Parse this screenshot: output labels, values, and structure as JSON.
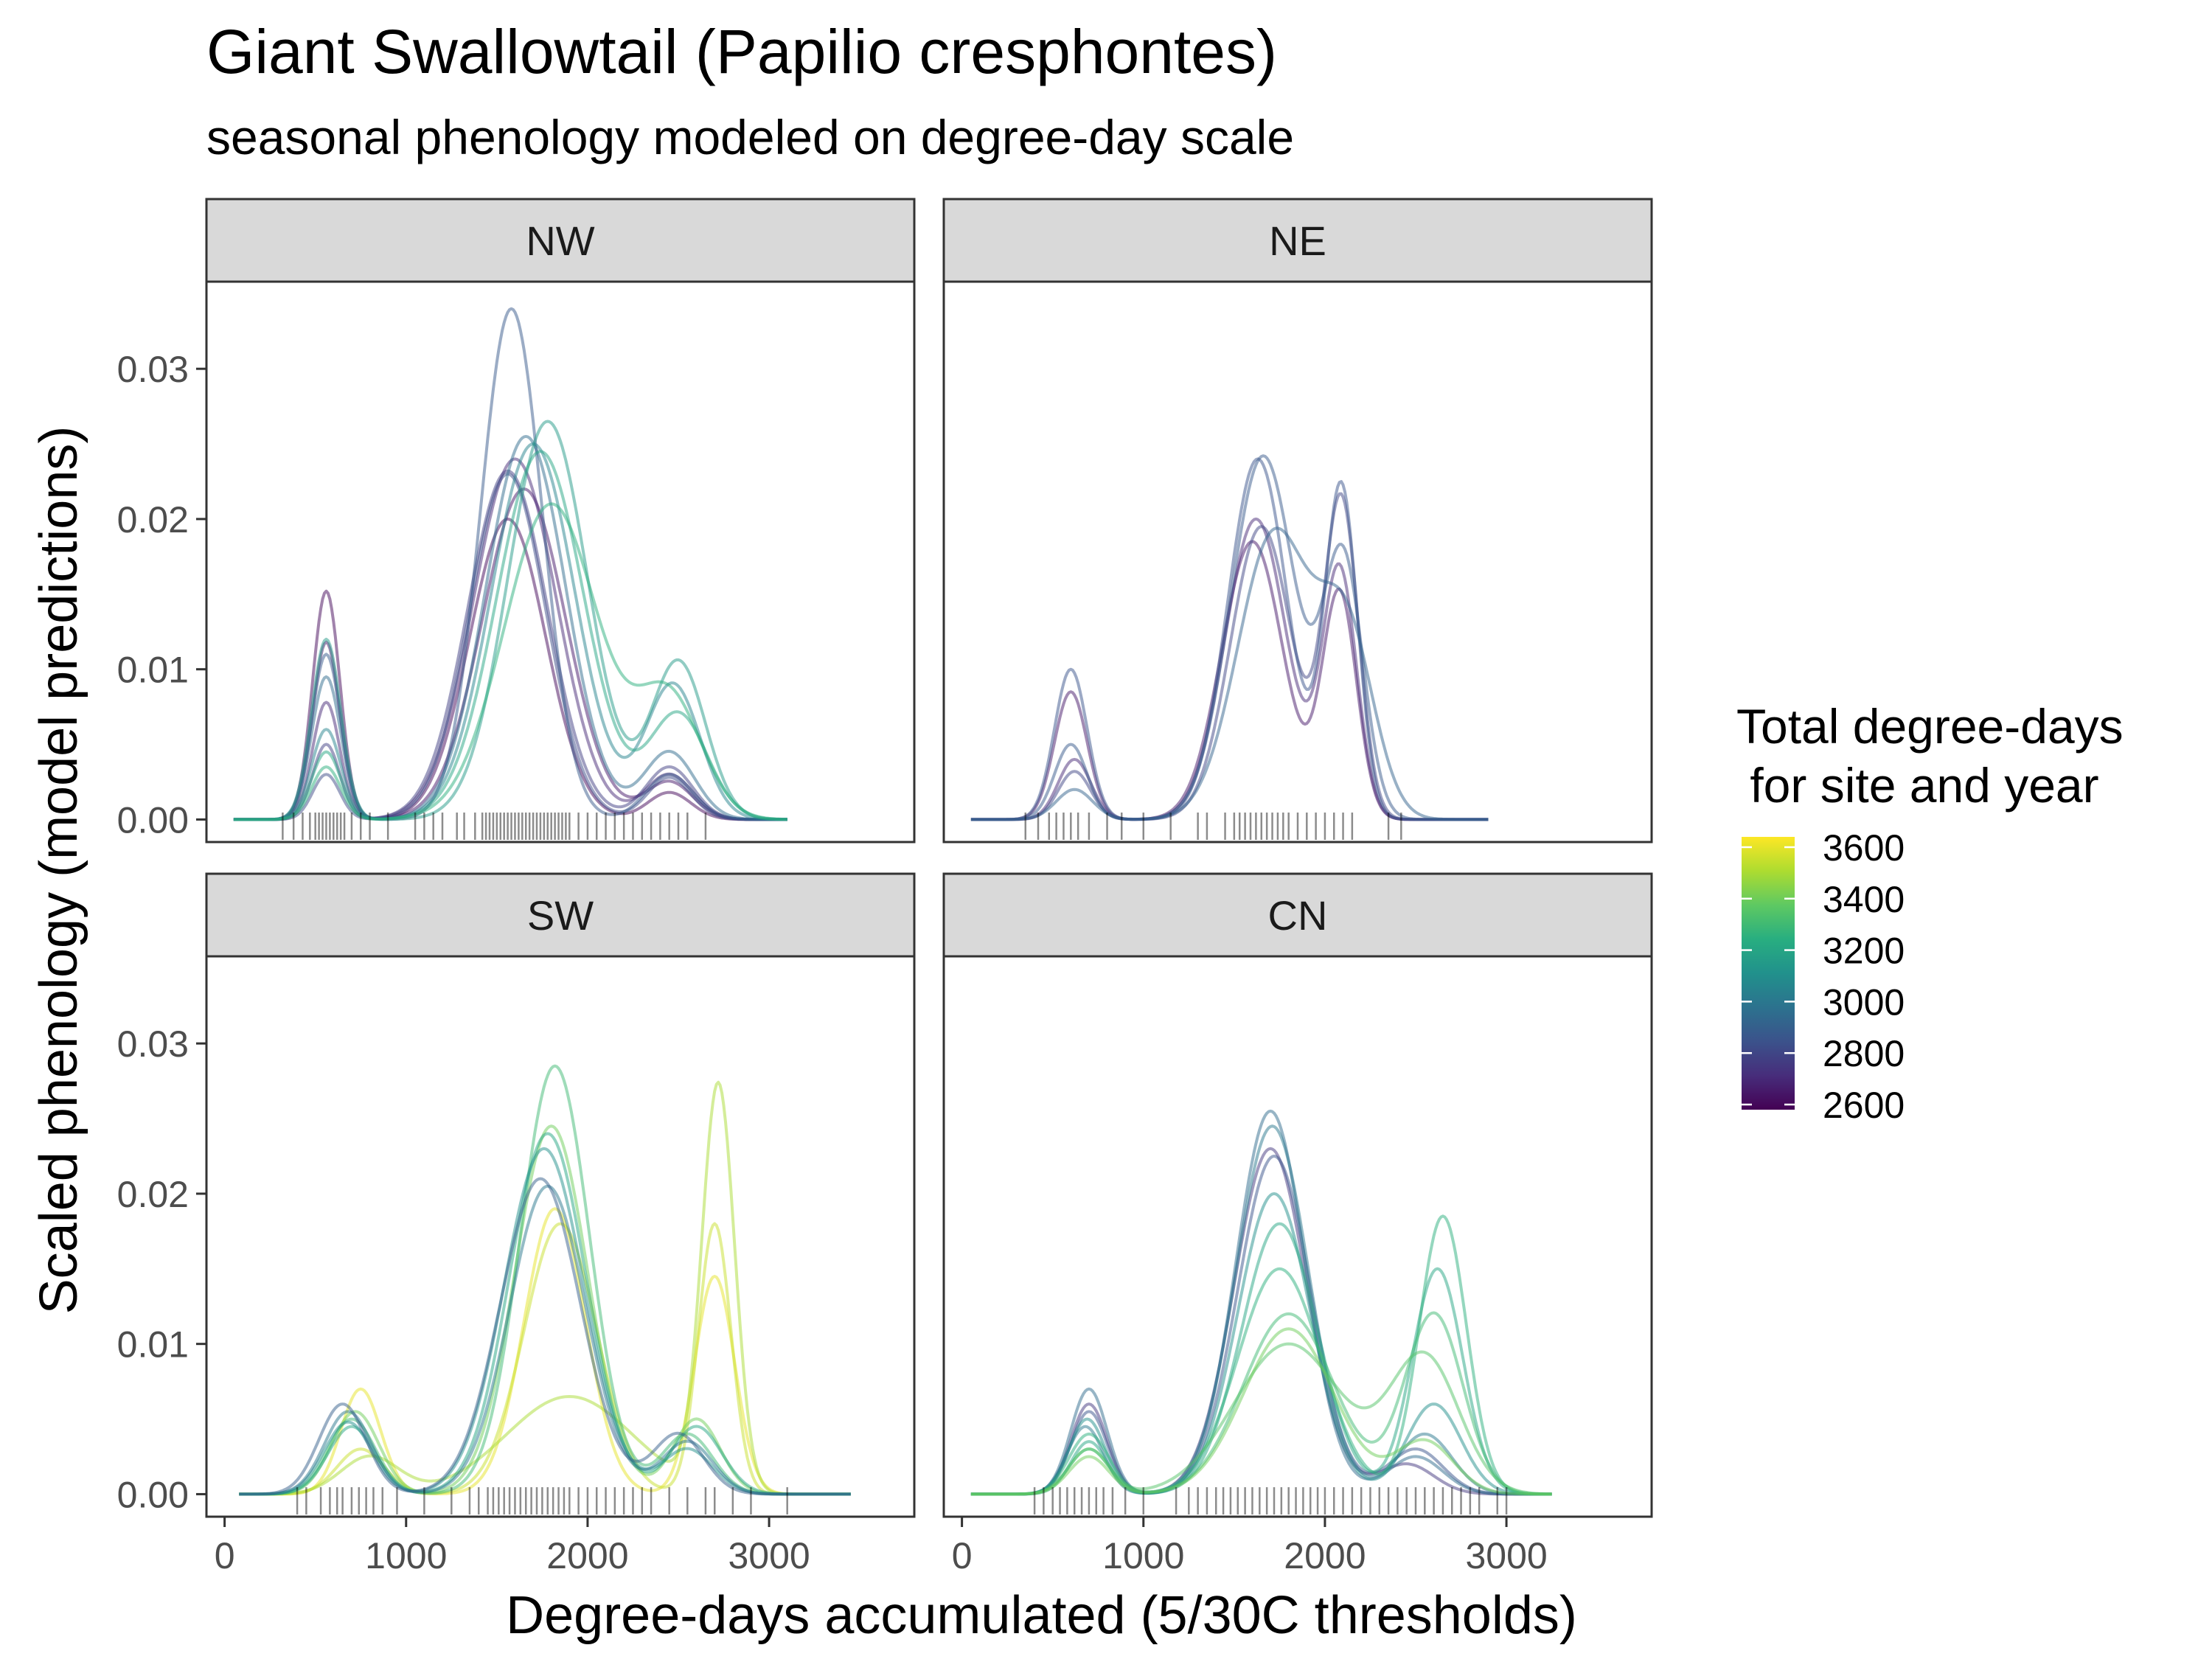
{
  "chart_data": {
    "type": "line",
    "title": "Giant Swallowtail (Papilio cresphontes)",
    "subtitle": "seasonal phenology modeled on degree-day scale",
    "xlabel": "Degree-days accumulated (5/30C thresholds)",
    "ylabel": "Scaled phenology (model predictions)",
    "xlim": [
      -100,
      3800
    ],
    "ylim": [
      -0.0015,
      0.0358
    ],
    "x_ticks": [
      0,
      1000,
      2000,
      3000
    ],
    "x_tick_labels": [
      "0",
      "1000",
      "2000",
      "3000"
    ],
    "y_ticks": [
      0,
      0.01,
      0.02,
      0.03
    ],
    "y_tick_labels": [
      "0.00",
      "0.01",
      "0.02",
      "0.03"
    ],
    "grid": false,
    "legend": {
      "title": "Total degree-days\n for site and year",
      "placement": "right",
      "type": "colorbar",
      "palette": "viridis",
      "range": [
        2580,
        3640
      ],
      "breaks": [
        3600,
        3400,
        3200,
        3000,
        2800,
        2600
      ],
      "break_labels": [
        "3600",
        "3400",
        "3200",
        "3000",
        "2800",
        "2600"
      ]
    },
    "panels": [
      {
        "name": "NW",
        "x_range": [
          50,
          3100
        ],
        "series": [
          {
            "color_value": 2600,
            "peaks": [
              [
                560,
                0.0152,
                75
              ],
              [
                1560,
                0.02,
                210
              ],
              [
                2450,
                0.0018,
                120
              ]
            ]
          },
          {
            "color_value": 2650,
            "peaks": [
              [
                560,
                0.0118,
                75
              ],
              [
                1650,
                0.022,
                230
              ],
              [
                2450,
                0.0025,
                130
              ]
            ]
          },
          {
            "color_value": 2700,
            "peaks": [
              [
                560,
                0.0078,
                75
              ],
              [
                1600,
                0.024,
                230
              ],
              [
                2450,
                0.003,
                130
              ]
            ]
          },
          {
            "color_value": 2780,
            "peaks": [
              [
                560,
                0.005,
                75
              ],
              [
                1560,
                0.0232,
                220
              ],
              [
                2450,
                0.0035,
                130
              ]
            ]
          },
          {
            "color_value": 2820,
            "peaks": [
              [
                560,
                0.003,
                75
              ],
              [
                1560,
                0.023,
                210
              ],
              [
                2450,
                0.0028,
                120
              ]
            ]
          },
          {
            "color_value": 2880,
            "peaks": [
              [
                560,
                0.011,
                80
              ],
              [
                1580,
                0.034,
                170
              ],
              [
                2450,
                0.003,
                130
              ]
            ]
          },
          {
            "color_value": 2950,
            "peaks": [
              [
                560,
                0.0095,
                80
              ],
              [
                1660,
                0.0255,
                220
              ],
              [
                2450,
                0.0045,
                140
              ]
            ]
          },
          {
            "color_value": 3050,
            "peaks": [
              [
                560,
                0.006,
                80
              ],
              [
                1700,
                0.025,
                230
              ],
              [
                2470,
                0.009,
                150
              ]
            ]
          },
          {
            "color_value": 3150,
            "peaks": [
              [
                560,
                0.012,
                80
              ],
              [
                1780,
                0.0265,
                220
              ],
              [
                2500,
                0.0105,
                150
              ]
            ]
          },
          {
            "color_value": 3200,
            "peaks": [
              [
                560,
                0.0045,
                80
              ],
              [
                1740,
                0.0245,
                240
              ],
              [
                2500,
                0.007,
                160
              ]
            ]
          },
          {
            "color_value": 3250,
            "peaks": [
              [
                560,
                0.0035,
                80
              ],
              [
                1800,
                0.021,
                260
              ],
              [
                2450,
                0.008,
                180
              ]
            ]
          }
        ]
      },
      {
        "name": "NE",
        "x_range": [
          50,
          2900
        ],
        "series": [
          {
            "color_value": 2650,
            "peaks": [
              [
                600,
                0.0085,
                90
              ],
              [
                1600,
                0.0185,
                170
              ],
              [
                2080,
                0.015,
                95
              ]
            ]
          },
          {
            "color_value": 2700,
            "peaks": [
              [
                620,
                0.004,
                90
              ],
              [
                1620,
                0.02,
                170
              ],
              [
                2080,
                0.0165,
                95
              ]
            ]
          },
          {
            "color_value": 2800,
            "peaks": [
              [
                620,
                0.0032,
                90
              ],
              [
                1650,
                0.0195,
                170
              ],
              [
                2090,
                0.021,
                95
              ]
            ]
          },
          {
            "color_value": 2850,
            "peaks": [
              [
                600,
                0.01,
                90
              ],
              [
                1630,
                0.024,
                165
              ],
              [
                2090,
                0.022,
                90
              ]
            ]
          },
          {
            "color_value": 2880,
            "peaks": [
              [
                600,
                0.005,
                90
              ],
              [
                1660,
                0.0242,
                180
              ],
              [
                2100,
                0.017,
                110
              ]
            ]
          },
          {
            "color_value": 2920,
            "peaks": [
              [
                620,
                0.002,
                100
              ],
              [
                1720,
                0.019,
                200
              ],
              [
                2120,
                0.012,
                150
              ]
            ]
          }
        ]
      },
      {
        "name": "SW",
        "x_range": [
          80,
          3450
        ],
        "series": [
          {
            "color_value": 3600,
            "peaks": [
              [
                750,
                0.007,
                110
              ],
              [
                1820,
                0.019,
                170
              ],
              [
                2700,
                0.0145,
                110
              ]
            ]
          },
          {
            "color_value": 3550,
            "peaks": [
              [
                750,
                0.003,
                130
              ],
              [
                1850,
                0.018,
                200
              ],
              [
                2700,
                0.018,
                90
              ]
            ]
          },
          {
            "color_value": 3500,
            "peaks": [
              [
                800,
                0.0025,
                160
              ],
              [
                1900,
                0.0065,
                350
              ],
              [
                2720,
                0.027,
                90
              ]
            ]
          },
          {
            "color_value": 3400,
            "peaks": [
              [
                720,
                0.0055,
                130
              ],
              [
                1800,
                0.0245,
                200
              ],
              [
                2600,
                0.005,
                130
              ]
            ]
          },
          {
            "color_value": 3300,
            "peaks": [
              [
                700,
                0.005,
                130
              ],
              [
                1820,
                0.0285,
                190
              ],
              [
                2550,
                0.004,
                140
              ]
            ]
          },
          {
            "color_value": 3200,
            "peaks": [
              [
                700,
                0.0045,
                130
              ],
              [
                1780,
                0.024,
                210
              ],
              [
                2600,
                0.0045,
                140
              ]
            ]
          },
          {
            "color_value": 3100,
            "peaks": [
              [
                680,
                0.0048,
                130
              ],
              [
                1760,
                0.023,
                220
              ],
              [
                2550,
                0.003,
                140
              ]
            ]
          },
          {
            "color_value": 3000,
            "peaks": [
              [
                680,
                0.0055,
                130
              ],
              [
                1780,
                0.0205,
                210
              ],
              [
                2550,
                0.0035,
                140
              ]
            ]
          },
          {
            "color_value": 2900,
            "peaks": [
              [
                650,
                0.006,
                130
              ],
              [
                1740,
                0.021,
                220
              ],
              [
                2500,
                0.004,
                140
              ]
            ]
          }
        ]
      },
      {
        "name": "CN",
        "x_range": [
          50,
          3250
        ],
        "series": [
          {
            "color_value": 2750,
            "peaks": [
              [
                700,
                0.006,
                100
              ],
              [
                1700,
                0.023,
                200
              ],
              [
                2450,
                0.002,
                150
              ]
            ]
          },
          {
            "color_value": 2850,
            "peaks": [
              [
                700,
                0.0055,
                100
              ],
              [
                1720,
                0.0225,
                200
              ],
              [
                2500,
                0.003,
                150
              ]
            ]
          },
          {
            "color_value": 2950,
            "peaks": [
              [
                700,
                0.007,
                100
              ],
              [
                1700,
                0.0255,
                190
              ],
              [
                2500,
                0.0025,
                150
              ]
            ]
          },
          {
            "color_value": 3000,
            "peaks": [
              [
                680,
                0.0045,
                100
              ],
              [
                1710,
                0.0245,
                200
              ],
              [
                2550,
                0.004,
                150
              ]
            ]
          },
          {
            "color_value": 3100,
            "peaks": [
              [
                690,
                0.005,
                100
              ],
              [
                1720,
                0.02,
                200
              ],
              [
                2600,
                0.006,
                150
              ]
            ]
          },
          {
            "color_value": 3200,
            "peaks": [
              [
                700,
                0.0035,
                100
              ],
              [
                1750,
                0.018,
                210
              ],
              [
                2620,
                0.015,
                140
              ]
            ]
          },
          {
            "color_value": 3250,
            "peaks": [
              [
                700,
                0.004,
                110
              ],
              [
                1750,
                0.015,
                230
              ],
              [
                2650,
                0.0185,
                130
              ]
            ]
          },
          {
            "color_value": 3300,
            "peaks": [
              [
                700,
                0.003,
                110
              ],
              [
                1800,
                0.012,
                250
              ],
              [
                2600,
                0.012,
                160
              ]
            ]
          },
          {
            "color_value": 3350,
            "peaks": [
              [
                700,
                0.003,
                110
              ],
              [
                1800,
                0.01,
                300
              ],
              [
                2550,
                0.009,
                190
              ]
            ]
          },
          {
            "color_value": 3400,
            "peaks": [
              [
                700,
                0.0025,
                110
              ],
              [
                1800,
                0.011,
                250
              ],
              [
                2550,
                0.0035,
                160
              ]
            ]
          }
        ]
      }
    ],
    "rug_points": [
      {
        "panel": "NW",
        "x": [
          320,
          380,
          430,
          470,
          500,
          520,
          540,
          560,
          580,
          600,
          620,
          640,
          660,
          700,
          750,
          800,
          900,
          1050,
          1100,
          1150,
          1200,
          1280,
          1320,
          1380,
          1420,
          1440,
          1460,
          1480,
          1500,
          1520,
          1540,
          1560,
          1580,
          1600,
          1620,
          1640,
          1660,
          1680,
          1700,
          1720,
          1740,
          1760,
          1780,
          1800,
          1820,
          1840,
          1860,
          1880,
          1900,
          1950,
          2000,
          2050,
          2100,
          2150,
          2200,
          2250,
          2300,
          2350,
          2400,
          2450,
          2500,
          2550,
          2650
        ]
      },
      {
        "panel": "NE",
        "x": [
          350,
          420,
          480,
          520,
          560,
          600,
          640,
          700,
          800,
          880,
          1000,
          1150,
          1300,
          1350,
          1450,
          1500,
          1530,
          1560,
          1590,
          1620,
          1650,
          1680,
          1710,
          1740,
          1770,
          1800,
          1850,
          1900,
          1950,
          2000,
          2050,
          2100,
          2150,
          2350,
          2420
        ]
      },
      {
        "panel": "SW",
        "x": [
          400,
          450,
          530,
          580,
          620,
          650,
          700,
          740,
          780,
          820,
          870,
          950,
          1100,
          1250,
          1350,
          1400,
          1450,
          1480,
          1510,
          1540,
          1570,
          1600,
          1630,
          1660,
          1690,
          1720,
          1750,
          1780,
          1810,
          1840,
          1870,
          1900,
          1950,
          2000,
          2050,
          2100,
          2150,
          2200,
          2250,
          2300,
          2350,
          2450,
          2550,
          2650,
          2700,
          2800,
          2900,
          3100
        ]
      },
      {
        "panel": "CN",
        "x": [
          400,
          450,
          500,
          540,
          580,
          620,
          660,
          700,
          740,
          780,
          830,
          900,
          1000,
          1180,
          1250,
          1300,
          1350,
          1400,
          1440,
          1480,
          1520,
          1560,
          1600,
          1640,
          1680,
          1720,
          1760,
          1800,
          1840,
          1880,
          1920,
          1960,
          2000,
          2050,
          2100,
          2150,
          2200,
          2250,
          2300,
          2350,
          2400,
          2450,
          2500,
          2550,
          2600,
          2650,
          2700,
          2750,
          2800,
          2850,
          2950,
          3000
        ]
      }
    ]
  }
}
